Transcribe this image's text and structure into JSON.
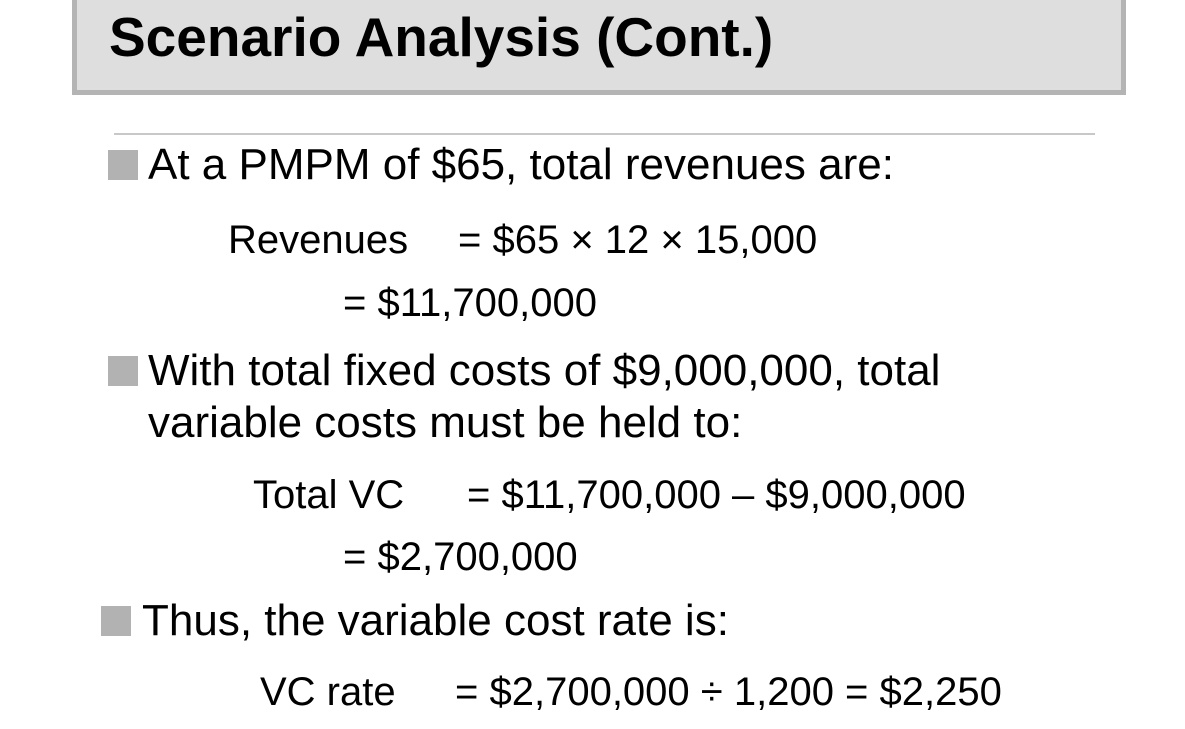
{
  "title": "Scenario Analysis (Cont.)",
  "bullets": [
    {
      "text": "At a PMPM of $65, total revenues are:"
    },
    {
      "text_line1": "With total fixed costs of $9,000,000, total",
      "text_line2": "variable costs must be held to:"
    },
    {
      "text": "Thus, the variable cost rate is:"
    }
  ],
  "equations": {
    "revenues": {
      "label": "Revenues",
      "rhs1": "= $65 × 12 × 15,000",
      "rhs2": "= $11,700,000"
    },
    "total_vc": {
      "label": "Total VC",
      "rhs1": "= $11,700,000 – $9,000,000",
      "rhs2": "= $2,700,000"
    },
    "vc_rate": {
      "label": "VC rate",
      "rhs1": "= $2,700,000 ÷ 1,200 = $2,250"
    }
  },
  "colors": {
    "title_bg": "#dedede",
    "title_border": "#b4b4b4",
    "bullet": "#b2b2b2"
  },
  "icons": {
    "bullet": "square-bullet-icon"
  }
}
